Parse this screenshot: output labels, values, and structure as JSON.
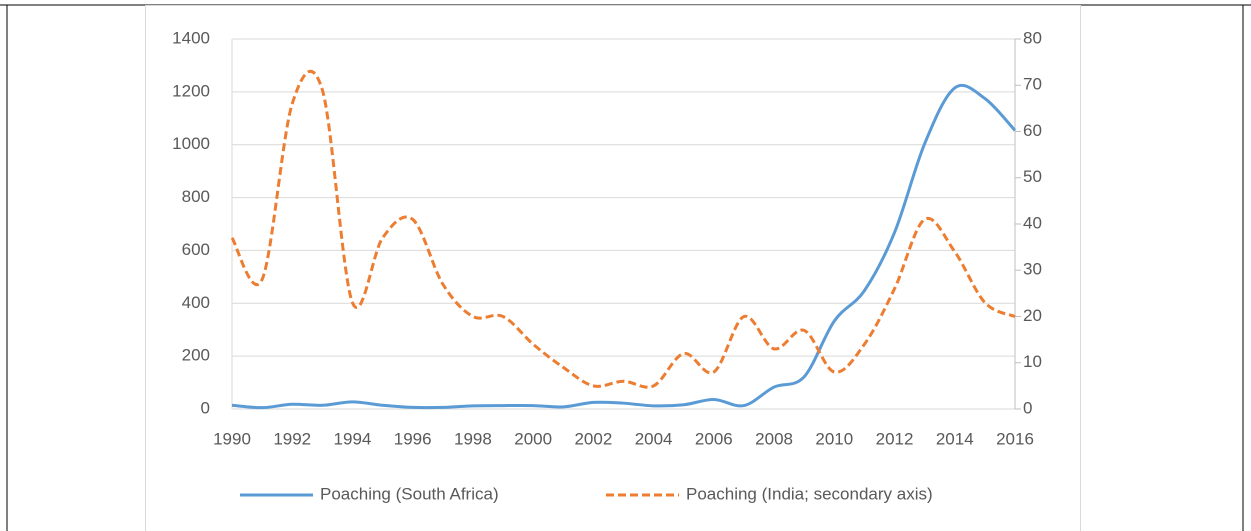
{
  "chart_data": {
    "type": "line",
    "x": [
      1990,
      1991,
      1992,
      1993,
      1994,
      1995,
      1996,
      1997,
      1998,
      1999,
      2000,
      2001,
      2002,
      2003,
      2004,
      2005,
      2006,
      2007,
      2008,
      2009,
      2010,
      2011,
      2012,
      2013,
      2014,
      2015,
      2016
    ],
    "series": [
      {
        "name": "Poaching (South Africa)",
        "color": "#5b9bd5",
        "values": [
          14,
          5,
          18,
          14,
          27,
          14,
          6,
          6,
          12,
          13,
          13,
          8,
          25,
          22,
          12,
          16,
          36,
          13,
          83,
          122,
          333,
          448,
          668,
          1004,
          1215,
          1175,
          1054
        ]
      },
      {
        "name": "Poaching (India; secondary axis)",
        "color": "#ed7d31",
        "axis": "y2",
        "values": [
          37,
          28,
          66,
          69,
          23,
          37,
          41,
          27,
          20,
          20,
          14,
          9,
          5,
          6,
          5,
          12,
          8,
          20,
          13,
          17,
          8,
          14,
          26,
          41,
          34,
          23,
          20
        ]
      }
    ],
    "xlim": [
      1990,
      2016
    ],
    "xticks": [
      1990,
      1992,
      1994,
      1996,
      1998,
      2000,
      2002,
      2004,
      2006,
      2008,
      2010,
      2012,
      2014,
      2016
    ],
    "ylim": [
      0,
      1400
    ],
    "yticks": [
      0,
      200,
      400,
      600,
      800,
      1000,
      1200,
      1400
    ],
    "y2lim": [
      0,
      80
    ],
    "y2ticks": [
      0,
      10,
      20,
      30,
      40,
      50,
      60,
      70,
      80
    ],
    "grid": true,
    "legend": "bottom"
  }
}
